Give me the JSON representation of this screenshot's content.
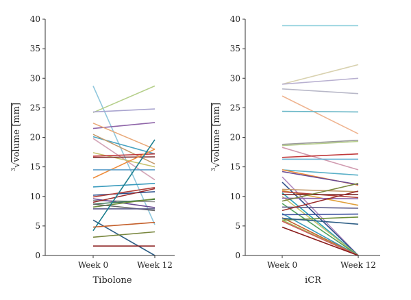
{
  "chart_data": [
    {
      "type": "line",
      "title": "Tibolone",
      "xlabel": "Tibolone",
      "ylabel_root": "3",
      "ylabel": "volume [mm]",
      "categories": [
        "Week 0",
        "Week 12"
      ],
      "ylim": [
        0,
        40
      ],
      "yticks": [
        "0",
        "5",
        "10",
        "15",
        "20",
        "25",
        "30",
        "35",
        "40"
      ],
      "series": [
        {
          "values": [
            28.7,
            5.2
          ],
          "color": "#8fc7dd"
        },
        {
          "values": [
            24.2,
            28.7
          ],
          "color": "#b5cf8a"
        },
        {
          "values": [
            24.3,
            24.8
          ],
          "color": "#a9a4cf"
        },
        {
          "values": [
            21.5,
            22.5
          ],
          "color": "#8e64a8"
        },
        {
          "values": [
            22.4,
            18.0
          ],
          "color": "#e8a878"
        },
        {
          "values": [
            20.1,
            17.2
          ],
          "color": "#4aa4c2"
        },
        {
          "values": [
            20.5,
            15.5
          ],
          "color": "#c49a6c"
        },
        {
          "values": [
            19.8,
            12.8
          ],
          "color": "#d3a3b6"
        },
        {
          "values": [
            17.4,
            15.0
          ],
          "color": "#c6c26d"
        },
        {
          "values": [
            16.8,
            17.2
          ],
          "color": "#c0393b"
        },
        {
          "values": [
            16.6,
            16.7
          ],
          "color": "#7f2a2a"
        },
        {
          "values": [
            13.1,
            18.0
          ],
          "color": "#ef8c3a"
        },
        {
          "values": [
            14.5,
            14.5
          ],
          "color": "#5b9ec9"
        },
        {
          "values": [
            11.6,
            12.2
          ],
          "color": "#3a9bbd"
        },
        {
          "values": [
            10.2,
            10.8
          ],
          "color": "#2b4f8c"
        },
        {
          "values": [
            9.9,
            11.5
          ],
          "color": "#b3413a"
        },
        {
          "values": [
            9.3,
            9.1
          ],
          "color": "#8c8c8c"
        },
        {
          "values": [
            9.6,
            8.1
          ],
          "color": "#6a4c93"
        },
        {
          "values": [
            9.0,
            11.3
          ],
          "color": "#9b2d2d"
        },
        {
          "values": [
            8.7,
            9.5
          ],
          "color": "#3b7a57"
        },
        {
          "values": [
            8.2,
            9.6
          ],
          "color": "#6c8e3a"
        },
        {
          "values": [
            8.7,
            7.6
          ],
          "color": "#666666"
        },
        {
          "values": [
            7.9,
            7.9
          ],
          "color": "#5c5c8a"
        },
        {
          "values": [
            6.0,
            0.0
          ],
          "color": "#2f5f86"
        },
        {
          "values": [
            4.2,
            19.6
          ],
          "color": "#1c7f8f"
        },
        {
          "values": [
            4.8,
            5.6
          ],
          "color": "#c45f2a"
        },
        {
          "values": [
            3.1,
            4.0
          ],
          "color": "#78863d"
        },
        {
          "values": [
            1.6,
            1.6
          ],
          "color": "#8a1c1c"
        }
      ]
    },
    {
      "type": "line",
      "title": "iCR",
      "xlabel": "iCR",
      "ylabel_root": "3",
      "ylabel": "volume [mm]",
      "categories": [
        "Week 0",
        "Week 12"
      ],
      "ylim": [
        0,
        40
      ],
      "yticks": [
        "0",
        "5",
        "10",
        "15",
        "20",
        "25",
        "30",
        "35",
        "40"
      ],
      "series": [
        {
          "values": [
            38.9,
            38.9
          ],
          "color": "#8fd0dc"
        },
        {
          "values": [
            29.0,
            32.3
          ],
          "color": "#d9d2b0"
        },
        {
          "values": [
            29.0,
            30.0
          ],
          "color": "#b8b0d0"
        },
        {
          "values": [
            28.2,
            27.4
          ],
          "color": "#b8b8c8"
        },
        {
          "values": [
            27.0,
            20.6
          ],
          "color": "#efb490"
        },
        {
          "values": [
            24.4,
            24.3
          ],
          "color": "#6ab7c7"
        },
        {
          "values": [
            18.8,
            19.5
          ],
          "color": "#9a9a9a"
        },
        {
          "values": [
            18.6,
            19.3
          ],
          "color": "#b8cf8e"
        },
        {
          "values": [
            18.3,
            14.5
          ],
          "color": "#d19bb0"
        },
        {
          "values": [
            16.6,
            17.2
          ],
          "color": "#c0393b"
        },
        {
          "values": [
            16.3,
            16.3
          ],
          "color": "#67b0d2"
        },
        {
          "values": [
            14.5,
            13.6
          ],
          "color": "#5ab0c8"
        },
        {
          "values": [
            14.5,
            11.9
          ],
          "color": "#ef8c3a"
        },
        {
          "values": [
            14.2,
            12.0
          ],
          "color": "#6a4c93"
        },
        {
          "values": [
            13.3,
            0.0
          ],
          "color": "#b28bc0"
        },
        {
          "values": [
            12.4,
            0.0
          ],
          "color": "#2d4f8a"
        },
        {
          "values": [
            11.2,
            10.8
          ],
          "color": "#c49a6c"
        },
        {
          "values": [
            11.0,
            8.5
          ],
          "color": "#e0a03a"
        },
        {
          "values": [
            10.8,
            9.8
          ],
          "color": "#b3413a"
        },
        {
          "values": [
            10.6,
            0.0
          ],
          "color": "#2aa3b5"
        },
        {
          "values": [
            10.3,
            10.3
          ],
          "color": "#7f2a2a"
        },
        {
          "values": [
            10.0,
            0.0
          ],
          "color": "#c6c26d"
        },
        {
          "values": [
            9.7,
            9.6
          ],
          "color": "#8e64a8"
        },
        {
          "values": [
            9.2,
            12.2
          ],
          "color": "#78863d"
        },
        {
          "values": [
            8.8,
            0.0
          ],
          "color": "#4ea05a"
        },
        {
          "values": [
            8.2,
            8.0
          ],
          "color": "#5c5c8a"
        },
        {
          "values": [
            7.6,
            10.9
          ],
          "color": "#9b2d2d"
        },
        {
          "values": [
            7.1,
            0.0
          ],
          "color": "#3a9bbd"
        },
        {
          "values": [
            6.9,
            7.0
          ],
          "color": "#3b4f9c"
        },
        {
          "values": [
            6.4,
            0.0
          ],
          "color": "#c45f2a"
        },
        {
          "values": [
            6.0,
            6.5
          ],
          "color": "#6c8e3a"
        },
        {
          "values": [
            6.3,
            5.3
          ],
          "color": "#2f5f86"
        },
        {
          "values": [
            6.0,
            0.0
          ],
          "color": "#a3c25a"
        },
        {
          "values": [
            5.8,
            0.0
          ],
          "color": "#cf5d5d"
        },
        {
          "values": [
            4.8,
            0.0
          ],
          "color": "#8a1c1c"
        }
      ]
    }
  ]
}
